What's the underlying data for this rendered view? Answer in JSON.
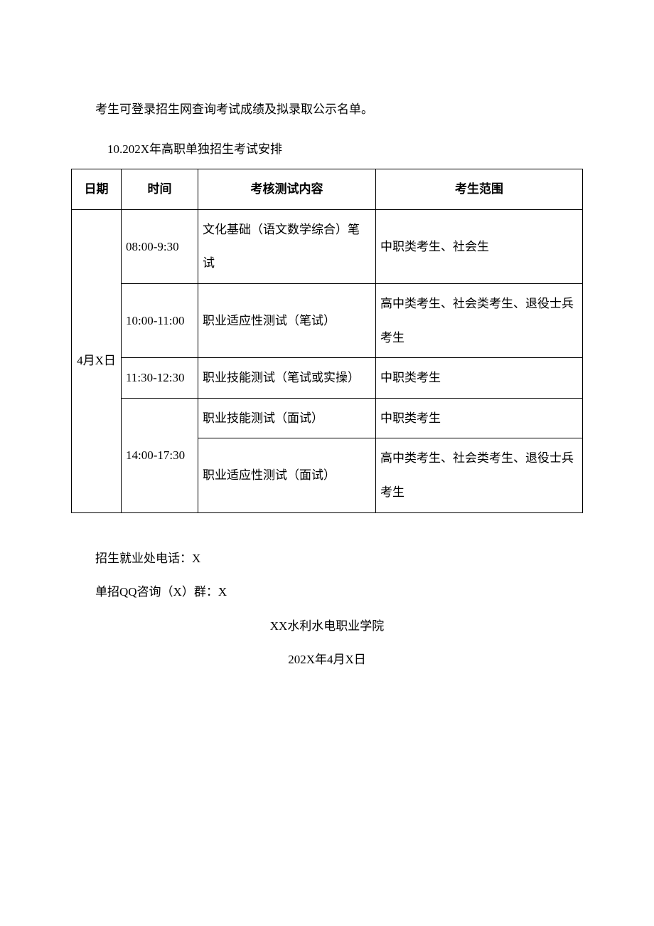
{
  "intro": "考生可登录招生网查询考试成绩及拟录取公示名单。",
  "schedule_title": "10.202X年高职单独招生考试安排",
  "table": {
    "headers": {
      "date": "日期",
      "time": "时间",
      "content": "考核测试内容",
      "scope": "考生范围"
    },
    "date_label": "4月X日",
    "rows": [
      {
        "time": "08:00-9:30",
        "content": "文化基础（语文数学综合）笔试",
        "scope": "中职类考生、社会生"
      },
      {
        "time": "10:00-11:00",
        "content": "职业适应性测试（笔试）",
        "scope": "高中类考生、社会类考生、退役士兵考生"
      },
      {
        "time": "11:30-12:30",
        "content": "职业技能测试（笔试或实操）",
        "scope": "中职类考生"
      },
      {
        "time": "14:00-17:30",
        "content_a": "职业技能测试（面试）",
        "scope_a": "中职类考生",
        "content_b": "职业适应性测试（面试）",
        "scope_b": "高中类考生、社会类考生、退役士兵考生"
      }
    ]
  },
  "contact": {
    "phone_line": "招生就业处电话：X",
    "qq_line": "单招QQ咨询（X）群：X"
  },
  "signature": {
    "org": "XX水利水电职业学院",
    "date": "202X年4月X日"
  },
  "colors": {
    "text": "#000000",
    "background": "#ffffff",
    "border": "#000000"
  }
}
